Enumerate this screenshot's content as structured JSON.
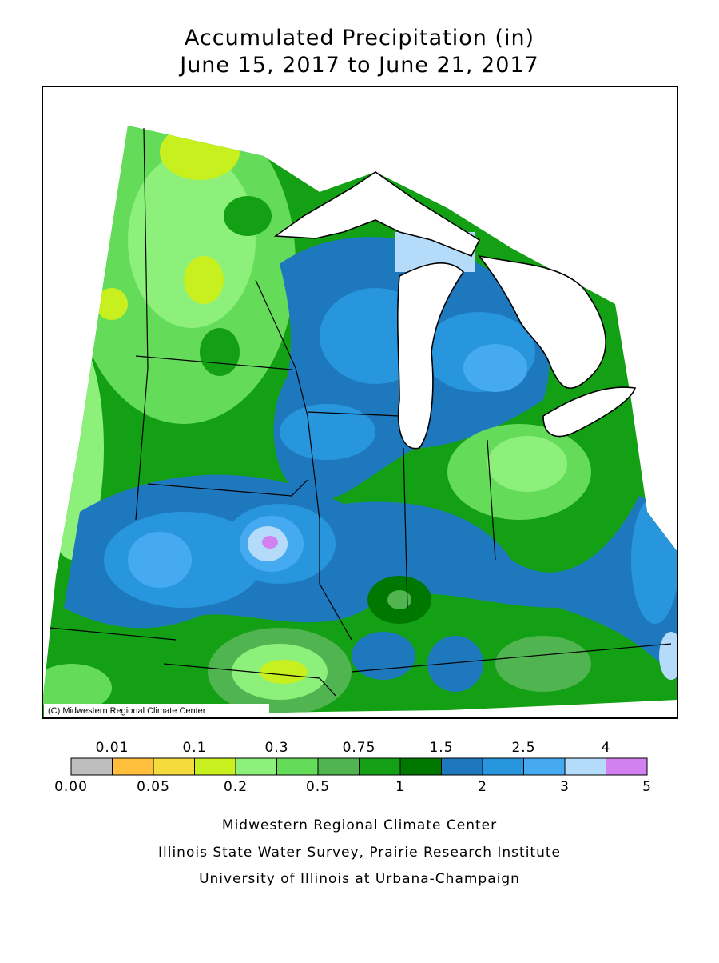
{
  "header": {
    "title": [
      "Accumulated Precipitation (in)",
      "June 15, 2017 to June 21, 2017"
    ]
  },
  "map": {
    "credit": "(C) Midwestern Regional Climate Center"
  },
  "legend": {
    "colors": [
      "#bebebe",
      "#ffbe3c",
      "#f5dc3c",
      "#c8f01e",
      "#8cf07a",
      "#64dc5a",
      "#50b450",
      "#14a014",
      "#007800",
      "#1e78be",
      "#2896dc",
      "#46aaf0",
      "#b4dcfa",
      "#d282f0"
    ],
    "labels": [
      "0.00",
      "0.01",
      "0.05",
      "0.1",
      "0.2",
      "0.3",
      "0.5",
      "0.75",
      "1",
      "1.5",
      "2",
      "2.5",
      "3",
      "4",
      "5"
    ]
  },
  "footer": {
    "lines": [
      "Midwestern Regional Climate Center",
      "Illinois State Water Survey, Prairie Research Institute",
      "University of Illinois at Urbana-Champaign"
    ]
  }
}
